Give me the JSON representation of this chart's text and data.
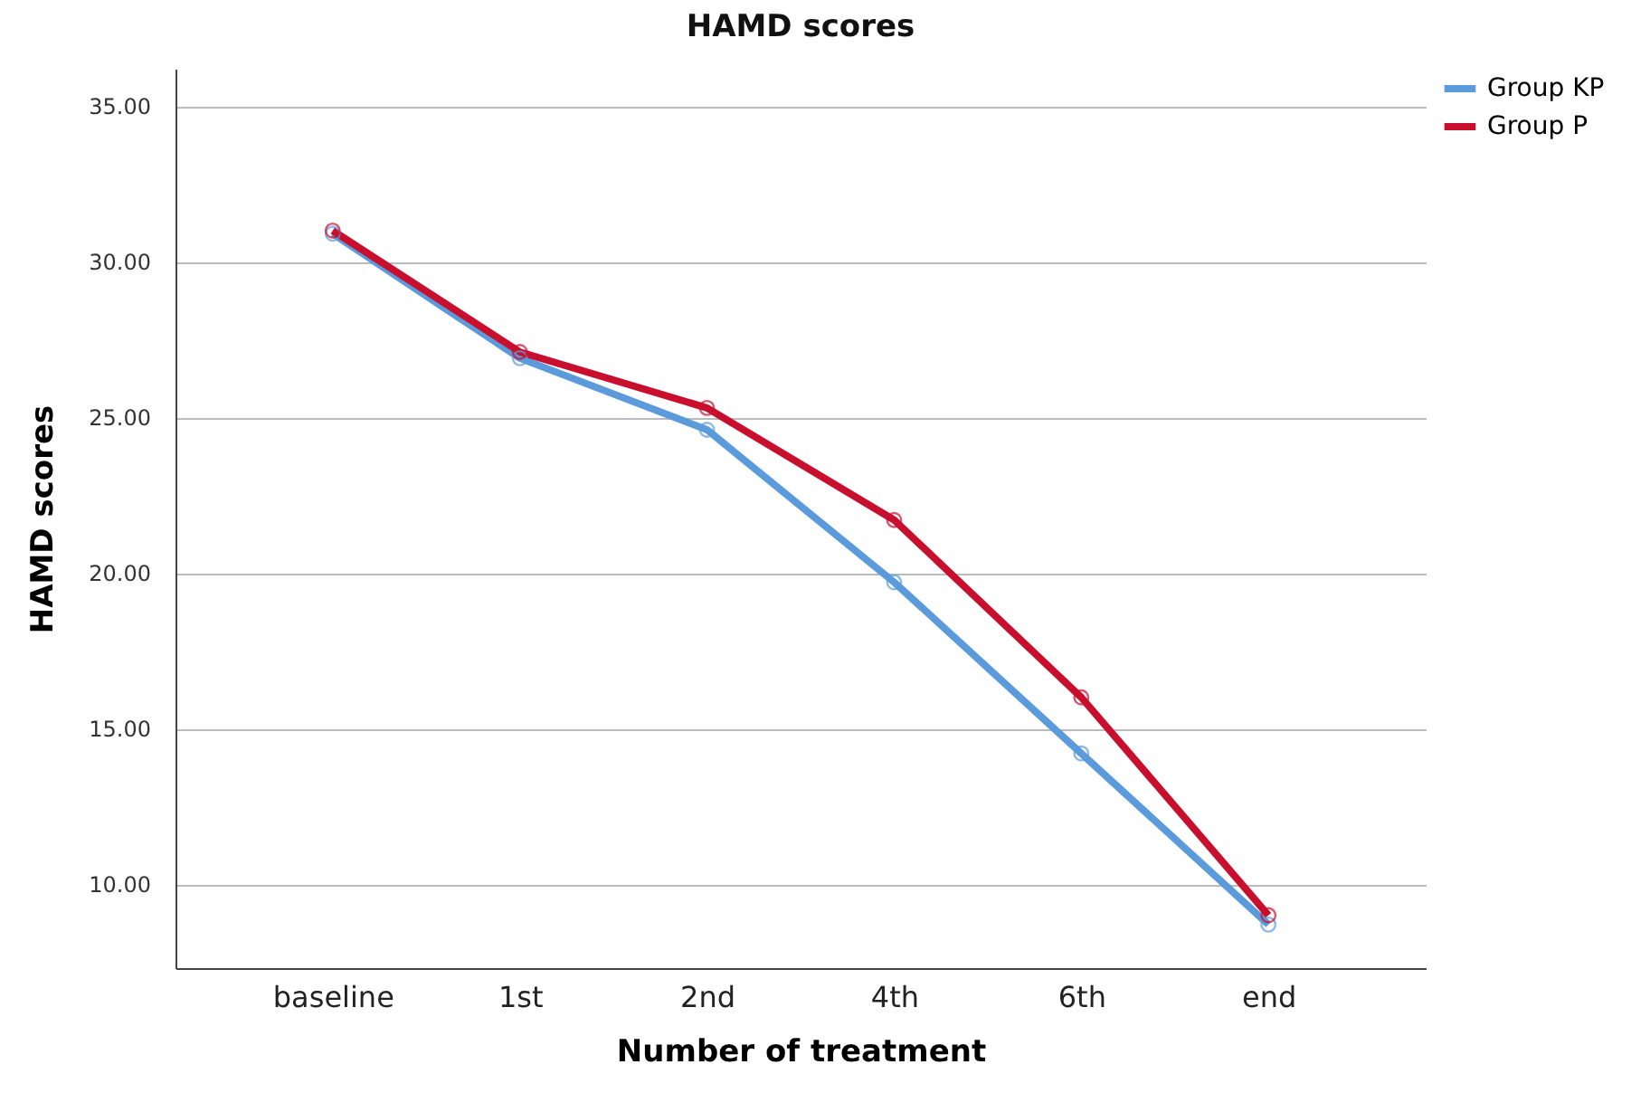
{
  "chart_data": {
    "type": "line",
    "title": "HAMD scores",
    "xlabel": "Number of treatment",
    "ylabel": "HAMD scores",
    "categories": [
      "baseline",
      "1st",
      "2nd",
      "4th",
      "6th",
      "end"
    ],
    "series": [
      {
        "name": "Group KP",
        "color": "#5b9bdc",
        "values": [
          30.9,
          26.9,
          24.6,
          19.7,
          14.2,
          8.7
        ]
      },
      {
        "name": "Group P",
        "color": "#c8102e",
        "values": [
          31.0,
          27.1,
          25.3,
          21.7,
          16.0,
          9.0
        ]
      }
    ],
    "ylim": [
      7.3,
      36.2
    ],
    "yticks": [
      {
        "value": 10,
        "label": "10.00"
      },
      {
        "value": 15,
        "label": "15.00"
      },
      {
        "value": 20,
        "label": "20.00"
      },
      {
        "value": 25,
        "label": "25.00"
      },
      {
        "value": 30,
        "label": "30.00"
      },
      {
        "value": 35,
        "label": "35.00"
      }
    ],
    "grid": "y",
    "legend": "top right",
    "marker": "circle",
    "line_style": "solid"
  }
}
